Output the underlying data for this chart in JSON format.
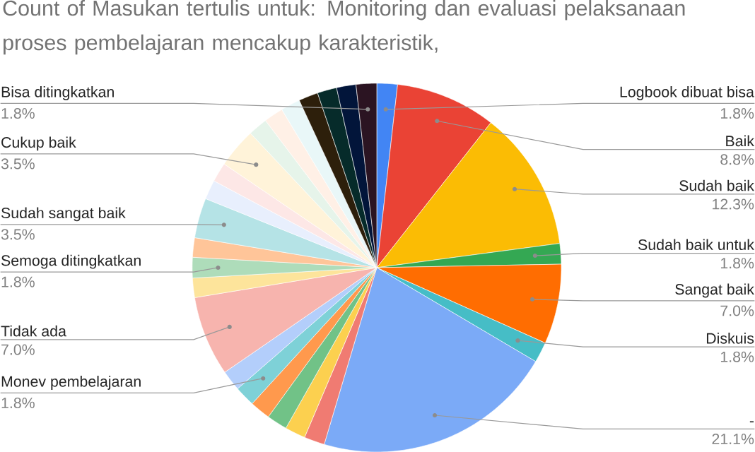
{
  "chart_data": {
    "type": "pie",
    "title": "Count of Masukan tertulis untuk: Monitoring dan evaluasi pelaksanaan proses pembelajaran mencakup karakteristik,",
    "categories": [
      "Logbook dibuat bisa",
      "Baik",
      "Sudah baik",
      "Sudah baik untuk",
      "Sangat baik",
      "Diskuis",
      "-",
      null,
      null,
      null,
      null,
      "Monev pembelajaran",
      null,
      "Tidak ada",
      null,
      "Semoga ditingkatkan",
      null,
      "Sudah sangat baik",
      null,
      null,
      "Cukup baik",
      null,
      null,
      null,
      null,
      null,
      null,
      "Bisa ditingkatkan"
    ],
    "values": [
      1.8,
      8.8,
      12.3,
      1.8,
      7.0,
      1.8,
      21.1,
      1.8,
      1.8,
      1.8,
      1.8,
      1.8,
      1.8,
      7.0,
      1.7,
      1.8,
      1.7,
      3.5,
      1.7,
      1.7,
      3.5,
      1.7,
      1.7,
      1.7,
      1.7,
      1.7,
      1.7,
      1.8
    ],
    "value_labels": [
      "1.8%",
      "8.8%",
      "12.3%",
      "1.8%",
      "7.0%",
      "1.8%",
      "21.1%",
      null,
      null,
      null,
      null,
      "1.8%",
      null,
      "7.0%",
      null,
      "1.8%",
      null,
      "3.5%",
      null,
      null,
      "3.5%",
      null,
      null,
      null,
      null,
      null,
      null,
      "1.8%"
    ],
    "colors": [
      "#4285f4",
      "#ea4335",
      "#fbbc04",
      "#34a853",
      "#ff6d01",
      "#46bdc6",
      "#7baaf7",
      "#f07b72",
      "#fcd04f",
      "#71c287",
      "#ff994d",
      "#7ed1d7",
      "#b3cefb",
      "#f7b4ae",
      "#fde49b",
      "#aedcba",
      "#ffc599",
      "#b5e3e6",
      "#e8effd",
      "#fde7e6",
      "#fff3d9",
      "#e6f4ea",
      "#fff0e6",
      "#e9f7f8",
      "#2d1f0b",
      "#062b2a",
      "#02153a",
      "#2b1422"
    ]
  }
}
